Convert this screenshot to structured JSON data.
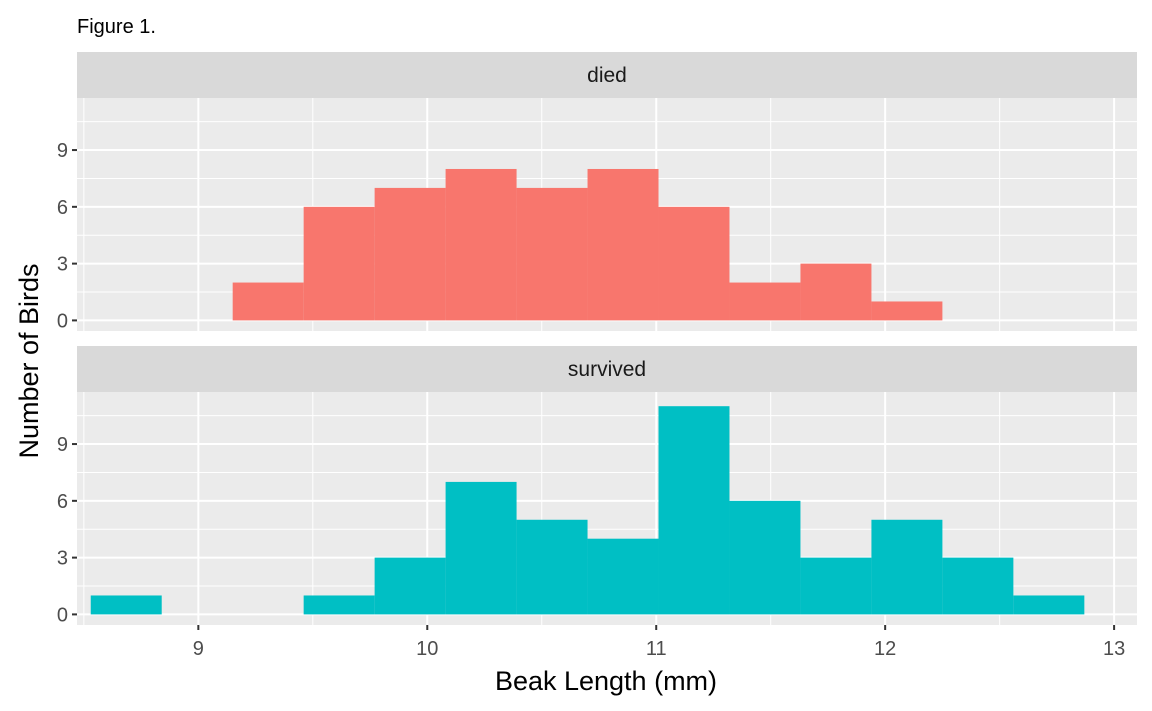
{
  "chart_data": {
    "type": "bar",
    "title": "Figure 1.",
    "xlabel": "Beak Length (mm)",
    "ylabel": "Number of Birds",
    "xlim": [
      8.47,
      13.1
    ],
    "x_ticks": [
      9,
      10,
      11,
      12,
      13
    ],
    "ylim": [
      -0.56,
      11.75
    ],
    "y_ticks": [
      0,
      3,
      6,
      9
    ],
    "bin_width": 0.31,
    "grid": true,
    "legend": "none",
    "panels": [
      {
        "label": "died",
        "color": "#F8766D",
        "bins": [
          {
            "x0": 9.15,
            "x1": 9.46,
            "count": 2
          },
          {
            "x0": 9.46,
            "x1": 9.77,
            "count": 6
          },
          {
            "x0": 9.77,
            "x1": 10.08,
            "count": 7
          },
          {
            "x0": 10.08,
            "x1": 10.39,
            "count": 8
          },
          {
            "x0": 10.39,
            "x1": 10.7,
            "count": 7
          },
          {
            "x0": 10.7,
            "x1": 11.01,
            "count": 8
          },
          {
            "x0": 11.01,
            "x1": 11.32,
            "count": 6
          },
          {
            "x0": 11.32,
            "x1": 11.63,
            "count": 2
          },
          {
            "x0": 11.63,
            "x1": 11.94,
            "count": 3
          },
          {
            "x0": 11.94,
            "x1": 12.25,
            "count": 1
          }
        ]
      },
      {
        "label": "survived",
        "color": "#00BFC4",
        "bins": [
          {
            "x0": 8.53,
            "x1": 8.84,
            "count": 1
          },
          {
            "x0": 9.46,
            "x1": 9.77,
            "count": 1
          },
          {
            "x0": 9.77,
            "x1": 10.08,
            "count": 3
          },
          {
            "x0": 10.08,
            "x1": 10.39,
            "count": 7
          },
          {
            "x0": 10.39,
            "x1": 10.7,
            "count": 5
          },
          {
            "x0": 10.7,
            "x1": 11.01,
            "count": 4
          },
          {
            "x0": 11.01,
            "x1": 11.32,
            "count": 11
          },
          {
            "x0": 11.32,
            "x1": 11.63,
            "count": 6
          },
          {
            "x0": 11.63,
            "x1": 11.94,
            "count": 3
          },
          {
            "x0": 11.94,
            "x1": 12.25,
            "count": 5
          },
          {
            "x0": 12.25,
            "x1": 12.56,
            "count": 3
          },
          {
            "x0": 12.56,
            "x1": 12.87,
            "count": 1
          }
        ]
      }
    ]
  }
}
